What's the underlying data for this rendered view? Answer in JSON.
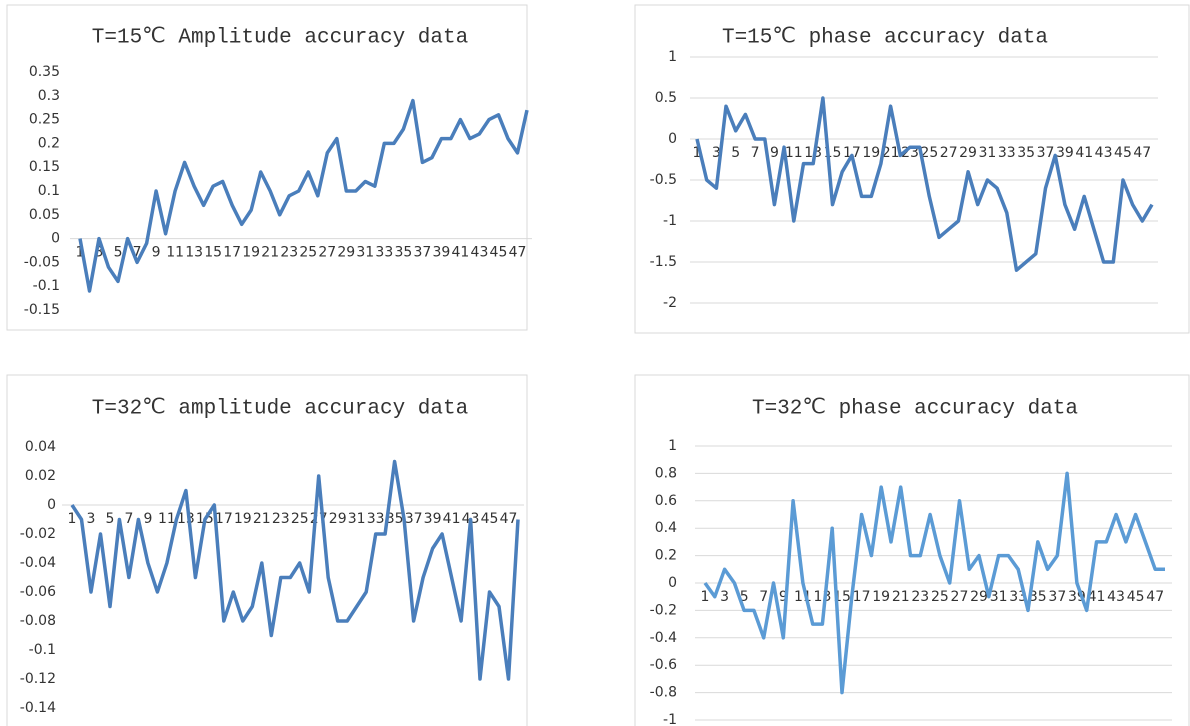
{
  "chart_data": [
    {
      "type": "line",
      "title": "T=15℃  Amplitude accuracy data",
      "color": "#4a7ebb",
      "categories": [
        1,
        null,
        3,
        null,
        5,
        null,
        7,
        null,
        9,
        null,
        11,
        null,
        13,
        null,
        15,
        null,
        17,
        null,
        19,
        null,
        21,
        null,
        23,
        null,
        25,
        null,
        27,
        null,
        29,
        null,
        31,
        null,
        33,
        null,
        35,
        null,
        37,
        null,
        39,
        null,
        41,
        null,
        43,
        null,
        45,
        null,
        47,
        null
      ],
      "values": [
        0,
        -0.11,
        0,
        -0.06,
        -0.09,
        0,
        -0.05,
        -0.01,
        0.1,
        0.01,
        0.1,
        0.16,
        0.11,
        0.07,
        0.11,
        0.12,
        0.07,
        0.03,
        0.06,
        0.14,
        0.1,
        0.05,
        0.09,
        0.1,
        0.14,
        0.09,
        0.18,
        0.21,
        0.1,
        0.1,
        0.12,
        0.11,
        0.2,
        0.2,
        0.23,
        0.29,
        0.16,
        0.17,
        0.21,
        0.21,
        0.25,
        0.21,
        0.22,
        0.25,
        0.26,
        0.21,
        0.18,
        0.27
      ],
      "ylim": [
        -0.15,
        0.35
      ],
      "yticks": [
        -0.15,
        -0.1,
        -0.05,
        0,
        0.05,
        0.1,
        0.15,
        0.2,
        0.25,
        0.3,
        0.35
      ],
      "grid": false
    },
    {
      "type": "line",
      "title": "T=15℃ phase accuracy data",
      "color": "#4a7ebb",
      "categories": [
        1,
        null,
        3,
        null,
        5,
        null,
        7,
        null,
        9,
        null,
        11,
        null,
        13,
        null,
        15,
        null,
        17,
        null,
        19,
        null,
        21,
        null,
        23,
        null,
        25,
        null,
        27,
        null,
        29,
        null,
        31,
        null,
        33,
        null,
        35,
        null,
        37,
        null,
        39,
        null,
        41,
        null,
        43,
        null,
        45,
        null,
        47,
        null
      ],
      "values": [
        0,
        -0.5,
        -0.6,
        0.4,
        0.1,
        0.3,
        0,
        0,
        -0.8,
        -0.1,
        -1,
        -0.3,
        -0.3,
        0.5,
        -0.8,
        -0.4,
        -0.2,
        -0.7,
        -0.7,
        -0.3,
        0.4,
        -0.2,
        -0.1,
        -0.1,
        -0.7,
        -1.2,
        -1.1,
        -1,
        -0.4,
        -0.8,
        -0.5,
        -0.6,
        -0.9,
        -1.6,
        -1.5,
        -1.4,
        -0.6,
        -0.2,
        -0.8,
        -1.1,
        -0.7,
        -1.1,
        -1.5,
        -1.5,
        -0.5,
        -0.8,
        -1,
        -0.8
      ],
      "ylim": [
        -2,
        1
      ],
      "yticks": [
        -2,
        -1.5,
        -1,
        -0.5,
        0,
        0.5,
        1
      ],
      "grid": true
    },
    {
      "type": "line",
      "title": "T=32℃ amplitude accuracy data",
      "color": "#4a7ebb",
      "categories": [
        1,
        null,
        3,
        null,
        5,
        null,
        7,
        null,
        9,
        null,
        11,
        null,
        13,
        null,
        15,
        null,
        17,
        null,
        19,
        null,
        21,
        null,
        23,
        null,
        25,
        null,
        27,
        null,
        29,
        null,
        31,
        null,
        33,
        null,
        35,
        null,
        37,
        null,
        39,
        null,
        41,
        null,
        43,
        null,
        45,
        null,
        47,
        null
      ],
      "values": [
        0,
        -0.01,
        -0.06,
        -0.02,
        -0.07,
        -0.01,
        -0.05,
        -0.01,
        -0.04,
        -0.06,
        -0.04,
        -0.01,
        0.01,
        -0.05,
        -0.01,
        0,
        -0.08,
        -0.06,
        -0.08,
        -0.07,
        -0.04,
        -0.09,
        -0.05,
        -0.05,
        -0.04,
        -0.06,
        0.02,
        -0.05,
        -0.08,
        -0.08,
        -0.07,
        -0.06,
        -0.02,
        -0.02,
        0.03,
        -0.01,
        -0.08,
        -0.05,
        -0.03,
        -0.02,
        -0.05,
        -0.08,
        -0.01,
        -0.12,
        -0.06,
        -0.07,
        -0.12,
        -0.01
      ],
      "ylim": [
        -0.14,
        0.04
      ],
      "yticks": [
        -0.14,
        -0.12,
        -0.1,
        -0.08,
        -0.06,
        -0.04,
        -0.02,
        0,
        0.02,
        0.04
      ],
      "grid": false
    },
    {
      "type": "line",
      "title": "T=32℃ phase accuracy data",
      "color": "#5b9bd5",
      "categories": [
        1,
        null,
        3,
        null,
        5,
        null,
        7,
        null,
        9,
        null,
        11,
        null,
        13,
        null,
        15,
        null,
        17,
        null,
        19,
        null,
        21,
        null,
        23,
        null,
        25,
        null,
        27,
        null,
        29,
        null,
        31,
        null,
        33,
        null,
        35,
        null,
        37,
        null,
        39,
        null,
        41,
        null,
        43,
        null,
        45,
        null,
        47,
        null
      ],
      "values": [
        0,
        -0.1,
        0.1,
        0,
        -0.2,
        -0.2,
        -0.4,
        0,
        -0.4,
        0.6,
        0,
        -0.3,
        -0.3,
        0.4,
        -0.8,
        -0.1,
        0.5,
        0.2,
        0.7,
        0.3,
        0.7,
        0.2,
        0.2,
        0.5,
        0.2,
        0,
        0.6,
        0.1,
        0.2,
        -0.1,
        0.2,
        0.2,
        0.1,
        -0.2,
        0.3,
        0.1,
        0.2,
        0.8,
        0,
        -0.2,
        0.3,
        0.3,
        0.5,
        0.3,
        0.5,
        0.3,
        0.1,
        0.1
      ],
      "ylim": [
        -1,
        1
      ],
      "yticks": [
        -1,
        -0.8,
        -0.6,
        -0.4,
        -0.2,
        0,
        0.2,
        0.4,
        0.6,
        0.8,
        1
      ],
      "grid": true
    }
  ]
}
